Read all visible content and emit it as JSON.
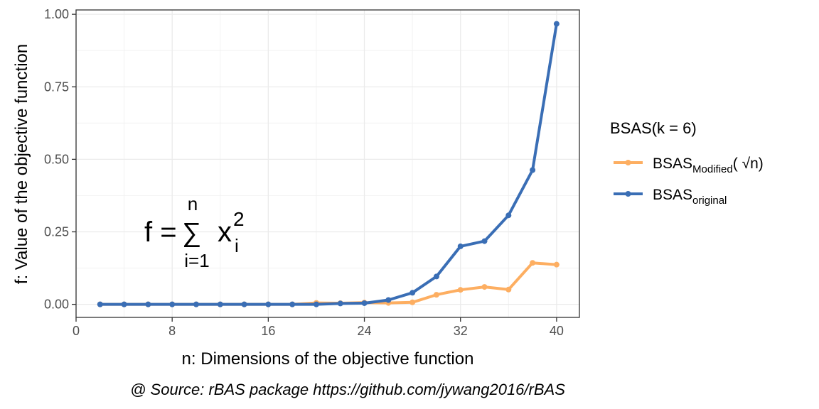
{
  "chart_data": {
    "type": "line",
    "xlabel": "n: Dimensions of the objective function",
    "ylabel": "f: Value of the objective function",
    "xlim": [
      0,
      41.9
    ],
    "ylim": [
      -0.045,
      1.015
    ],
    "x_ticks": [
      0,
      8,
      16,
      24,
      32,
      40
    ],
    "y_ticks": [
      0.0,
      0.25,
      0.5,
      0.75,
      1.0
    ],
    "x_tick_labels": [
      "0",
      "8",
      "16",
      "24",
      "32",
      "40"
    ],
    "y_tick_labels": [
      "0.00",
      "0.25",
      "0.50",
      "0.75",
      "1.00"
    ],
    "grid": true,
    "legend": {
      "position": "right",
      "title": "BSAS(k = 6)",
      "entries": [
        {
          "base": "BSAS",
          "sub": "Modified",
          "suffix": "( ",
          "sqrt": "√",
          "arg": "n",
          "close": ")"
        },
        {
          "base": "BSAS",
          "sub": "original"
        }
      ]
    },
    "series": [
      {
        "name": "BSAS Modified (√n)",
        "color": "#fdae61",
        "x": [
          2,
          4,
          6,
          8,
          10,
          12,
          14,
          16,
          18,
          20,
          22,
          24,
          26,
          28,
          30,
          32,
          34,
          36,
          38,
          40
        ],
        "y": [
          0,
          0,
          0,
          0,
          0,
          0,
          0,
          0,
          0,
          0.005,
          0.004,
          0.006,
          0.005,
          0.007,
          0.033,
          0.05,
          0.06,
          0.051,
          0.143,
          0.137
        ]
      },
      {
        "name": "BSAS original",
        "color": "#3a6eb5",
        "x": [
          2,
          4,
          6,
          8,
          10,
          12,
          14,
          16,
          18,
          20,
          22,
          24,
          26,
          28,
          30,
          32,
          34,
          36,
          38,
          40
        ],
        "y": [
          0,
          0,
          0,
          0,
          0,
          0,
          0,
          0,
          0,
          0,
          0.003,
          0.004,
          0.015,
          0.04,
          0.096,
          0.2,
          0.218,
          0.307,
          0.463,
          0.967
        ]
      }
    ],
    "annotation": {
      "lhs": "f =",
      "sum": "∑",
      "upper": "n",
      "lower": "i=1",
      "var": "x",
      "sub": "i",
      "sup": "2"
    },
    "caption": "@ Source: rBAS package https://github.com/jywang2016/rBAS"
  }
}
